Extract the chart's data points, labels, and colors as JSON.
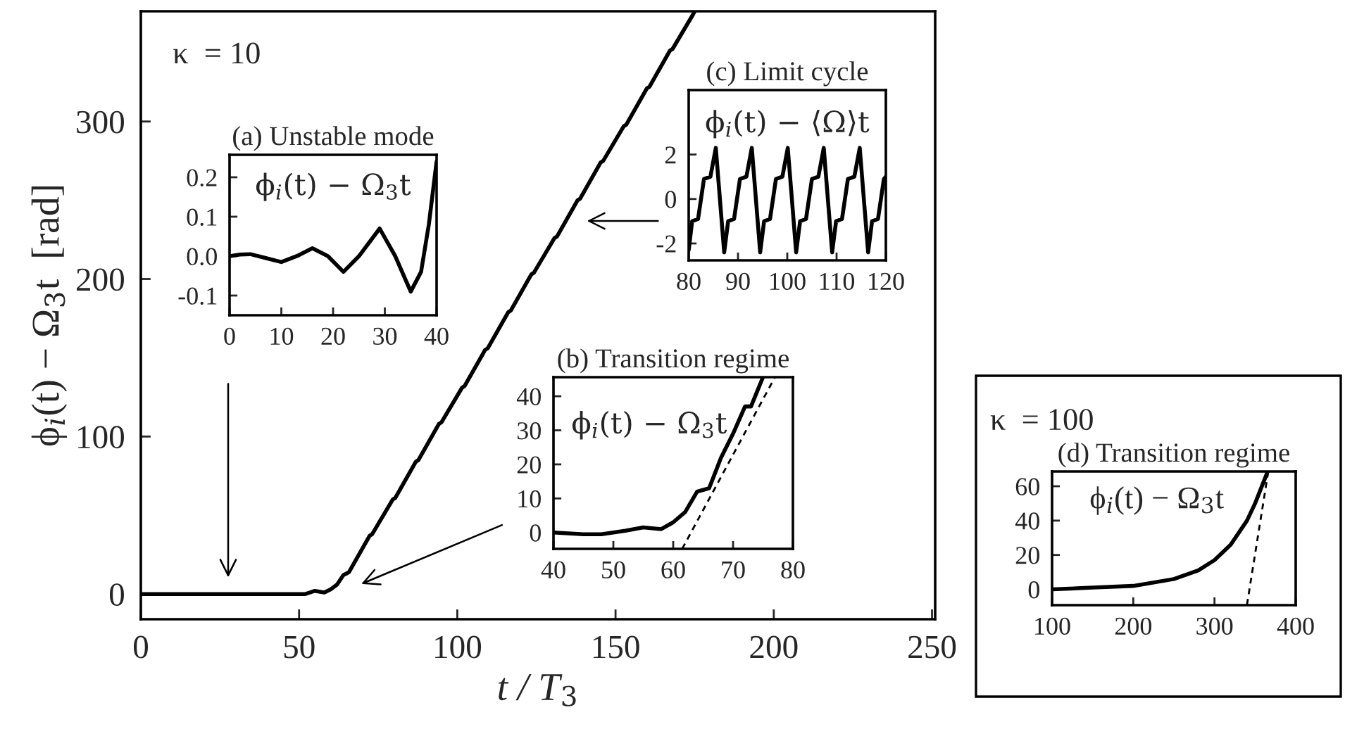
{
  "chart_data": [
    {
      "type": "line",
      "xlabel": "t / T$_{3}$",
      "ylabel": "ϕ$_{i}$(t) − Ω$_{3}$t  [rad]",
      "xlim": [
        0,
        251
      ],
      "ylim": [
        -16,
        370
      ],
      "xticks": [
        0,
        50,
        100,
        150,
        200,
        250
      ],
      "yticks": [
        0,
        100,
        200,
        300
      ],
      "annotations": [
        "κ  = 10"
      ],
      "series": [
        {
          "color": "#000000",
          "x": [
            0,
            20,
            40,
            48,
            52,
            55,
            58,
            60,
            62,
            64,
            65.0,
            65.8,
            72.3,
            73.1,
            79.6,
            80.4,
            86.9,
            87.7,
            94.2,
            95.0,
            101.5,
            102.3,
            108.8,
            109.6,
            116.1,
            116.9,
            123.4,
            124.2,
            130.7,
            131.5,
            138.0,
            138.8,
            145.3,
            146.1,
            152.6,
            153.4,
            159.9,
            160.7,
            167.2,
            168.0,
            174.5,
            175
          ],
          "values": [
            0,
            0,
            0,
            0,
            0,
            2,
            1,
            3,
            6,
            12,
            13,
            14,
            37,
            38,
            60,
            61,
            84,
            85,
            108,
            109,
            131,
            132,
            155,
            156,
            179,
            180,
            203,
            204,
            226,
            227,
            250,
            251,
            274,
            275,
            297,
            298,
            321,
            322,
            345,
            346,
            368,
            370
          ]
        }
      ]
    },
    {
      "type": "line",
      "title": "(a) Unstable mode",
      "xlim": [
        0,
        40
      ],
      "ylim": [
        -0.15,
        0.257
      ],
      "xticks": [
        0,
        10,
        20,
        30,
        40
      ],
      "yticks": [
        {
          "value": 0.2,
          "label": "0.2"
        },
        {
          "value": 0.1,
          "label": "0.1"
        },
        {
          "value": 0,
          "label": "0.0"
        },
        {
          "value": -0.1,
          "label": "-0.1"
        }
      ],
      "annotations": [
        "ϕ$_{i}$(t) − Ω$_{3}$t"
      ],
      "series": [
        {
          "color": "#000000",
          "x": [
            0,
            2,
            4,
            7,
            10,
            13,
            16,
            19,
            22,
            25,
            29,
            32,
            35,
            37,
            38.5,
            40
          ],
          "values": [
            0,
            0.004,
            0.005,
            -0.005,
            -0.015,
            0.0,
            0.02,
            0.0,
            -0.04,
            0.0,
            0.07,
            0.0,
            -0.09,
            -0.04,
            0.08,
            0.24
          ]
        }
      ]
    },
    {
      "type": "line",
      "title": "(c) Limit cycle",
      "xlim": [
        80,
        120
      ],
      "ylim": [
        -2.76,
        4.9
      ],
      "xticks": [
        80,
        90,
        100,
        110,
        120
      ],
      "yticks": [
        2,
        0,
        {
          "value": -2,
          "label": "-2"
        }
      ],
      "annotations": [
        "ϕ$_{i}$(t) − ⟨Ω⟩t"
      ],
      "series": [
        {
          "color": "#000000",
          "x": [
            80,
            80.7,
            81.9,
            83.1,
            84.4,
            85.5,
            87.2,
            88.0,
            89.2,
            90.4,
            91.7,
            92.8,
            94.5,
            95.3,
            96.5,
            97.7,
            99.0,
            100.1,
            101.8,
            102.6,
            103.8,
            105.0,
            106.3,
            107.4,
            109.1,
            109.9,
            111.1,
            112.3,
            113.6,
            114.7,
            116.4,
            117.2,
            118.4,
            119.6,
            120
          ],
          "values": [
            -2.3,
            -1,
            -0.9,
            0.9,
            1.0,
            2.3,
            -2.4,
            -1,
            -0.9,
            0.9,
            1.0,
            2.3,
            -2.4,
            -1,
            -0.9,
            0.9,
            1.0,
            2.3,
            -2.4,
            -1,
            -0.9,
            0.9,
            1.0,
            2.3,
            -2.4,
            -1,
            -0.9,
            0.9,
            1.0,
            2.3,
            -2.4,
            -1,
            -0.9,
            0.9,
            1.0
          ]
        }
      ]
    },
    {
      "type": "line",
      "title": "(b) Transition regime",
      "xlim": [
        40,
        80
      ],
      "ylim": [
        -4.8,
        45.6
      ],
      "xticks": [
        40,
        50,
        60,
        70,
        80
      ],
      "yticks": [
        0,
        10,
        20,
        30,
        40
      ],
      "annotations": [
        "ϕ$_{i}$(t) − Ω$_{3}$t"
      ],
      "series": [
        {
          "color": "#000000",
          "x": [
            40,
            45,
            48,
            52,
            55,
            58,
            60,
            62,
            64,
            65,
            66,
            68,
            70,
            72,
            73,
            75
          ],
          "values": [
            0,
            -0.5,
            -0.5,
            0.5,
            1.5,
            1,
            3,
            6,
            12,
            12.5,
            13,
            22,
            29,
            37,
            37,
            45.6
          ]
        },
        {
          "color": "#000000",
          "line_style": "dashed",
          "x": [
            61.5,
            77
          ],
          "values": [
            -4.8,
            45.6
          ]
        }
      ]
    },
    {
      "type": "line",
      "title": "(d) Transition regime",
      "xlim": [
        100,
        400
      ],
      "ylim": [
        -9.2,
        68.6
      ],
      "xticks": [
        100,
        200,
        300,
        400
      ],
      "yticks": [
        0,
        20,
        40,
        60
      ],
      "annotations": [
        "κ  = 100",
        "ϕ$_{i}$(t) − Ω$_{3}$t"
      ],
      "series": [
        {
          "color": "#000000",
          "x": [
            100,
            150,
            200,
            250,
            280,
            300,
            320,
            340,
            350,
            360,
            365
          ],
          "values": [
            0,
            1,
            2,
            6,
            11,
            17,
            26,
            40,
            50,
            62,
            68
          ]
        },
        {
          "color": "#000000",
          "line_style": "dashed",
          "x": [
            340,
            366
          ],
          "values": [
            -9,
            68
          ]
        }
      ]
    }
  ]
}
